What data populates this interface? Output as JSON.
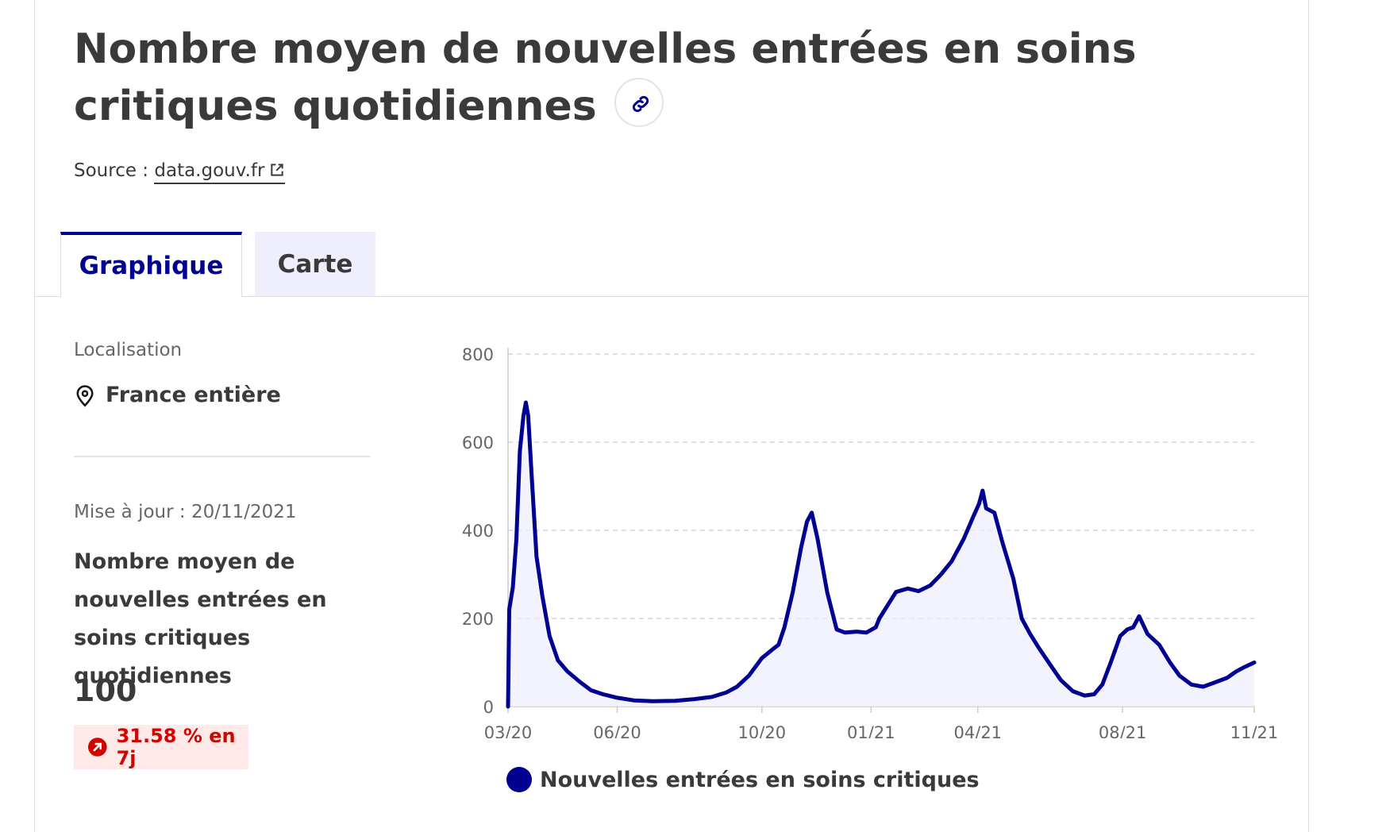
{
  "header": {
    "title": "Nombre moyen de nouvelles entrées en soins critiques quotidiennes",
    "source_prefix": "Source :",
    "source_link": "data.gouv.fr"
  },
  "tabs": [
    {
      "label": "Graphique",
      "active": true
    },
    {
      "label": "Carte",
      "active": false
    }
  ],
  "sidebar": {
    "location_label": "Localisation",
    "location_value": "France entière",
    "update_text": "Mise à jour : 20/11/2021",
    "metric_name": "Nombre moyen de nouvelles entrées en soins critiques quotidiennes",
    "metric_value": "100",
    "trend_text": "31.58 % en 7j"
  },
  "colors": {
    "accent": "#000091",
    "trend": "#ce0500",
    "trend_bg": "#ffe9e9"
  },
  "chart_data": {
    "type": "area",
    "xlabel": "",
    "ylabel": "",
    "ylim": [
      0,
      800
    ],
    "yticks": [
      0,
      200,
      400,
      600,
      800
    ],
    "xticks": [
      "03/20",
      "06/20",
      "10/20",
      "01/21",
      "04/21",
      "08/21",
      "11/21"
    ],
    "grid": true,
    "legend_position": "bottom",
    "series": [
      {
        "name": "Nouvelles entrées en soins critiques",
        "color": "#000091",
        "points": [
          [
            "2020-03-01",
            0
          ],
          [
            "2020-03-02",
            220
          ],
          [
            "2020-03-05",
            270
          ],
          [
            "2020-03-08",
            380
          ],
          [
            "2020-03-11",
            580
          ],
          [
            "2020-03-14",
            660
          ],
          [
            "2020-03-16",
            690
          ],
          [
            "2020-03-18",
            660
          ],
          [
            "2020-03-21",
            520
          ],
          [
            "2020-03-25",
            340
          ],
          [
            "2020-03-30",
            250
          ],
          [
            "2020-04-05",
            160
          ],
          [
            "2020-04-12",
            105
          ],
          [
            "2020-04-20",
            80
          ],
          [
            "2020-05-01",
            55
          ],
          [
            "2020-05-10",
            37
          ],
          [
            "2020-05-20",
            28
          ],
          [
            "2020-06-01",
            20
          ],
          [
            "2020-06-15",
            14
          ],
          [
            "2020-07-01",
            12
          ],
          [
            "2020-07-20",
            13
          ],
          [
            "2020-08-05",
            17
          ],
          [
            "2020-08-20",
            22
          ],
          [
            "2020-09-01",
            32
          ],
          [
            "2020-09-10",
            45
          ],
          [
            "2020-09-20",
            70
          ],
          [
            "2020-10-01",
            110
          ],
          [
            "2020-10-10",
            130
          ],
          [
            "2020-10-15",
            140
          ],
          [
            "2020-10-20",
            180
          ],
          [
            "2020-10-27",
            260
          ],
          [
            "2020-11-03",
            360
          ],
          [
            "2020-11-08",
            420
          ],
          [
            "2020-11-12",
            440
          ],
          [
            "2020-11-17",
            380
          ],
          [
            "2020-11-25",
            260
          ],
          [
            "2020-12-03",
            175
          ],
          [
            "2020-12-10",
            168
          ],
          [
            "2020-12-20",
            170
          ],
          [
            "2020-12-28",
            168
          ],
          [
            "2021-01-05",
            180
          ],
          [
            "2021-01-08",
            200
          ],
          [
            "2021-01-15",
            230
          ],
          [
            "2021-01-22",
            260
          ],
          [
            "2021-02-01",
            268
          ],
          [
            "2021-02-10",
            262
          ],
          [
            "2021-02-20",
            275
          ],
          [
            "2021-03-01",
            300
          ],
          [
            "2021-03-10",
            330
          ],
          [
            "2021-03-20",
            380
          ],
          [
            "2021-03-28",
            430
          ],
          [
            "2021-04-02",
            460
          ],
          [
            "2021-04-05",
            490
          ],
          [
            "2021-04-08",
            450
          ],
          [
            "2021-04-15",
            440
          ],
          [
            "2021-04-22",
            370
          ],
          [
            "2021-05-01",
            290
          ],
          [
            "2021-05-08",
            200
          ],
          [
            "2021-05-15",
            165
          ],
          [
            "2021-05-22",
            135
          ],
          [
            "2021-06-01",
            95
          ],
          [
            "2021-06-10",
            60
          ],
          [
            "2021-06-20",
            35
          ],
          [
            "2021-06-30",
            25
          ],
          [
            "2021-07-08",
            28
          ],
          [
            "2021-07-15",
            50
          ],
          [
            "2021-07-22",
            100
          ],
          [
            "2021-07-30",
            160
          ],
          [
            "2021-08-05",
            175
          ],
          [
            "2021-08-10",
            180
          ],
          [
            "2021-08-15",
            205
          ],
          [
            "2021-08-22",
            165
          ],
          [
            "2021-09-01",
            140
          ],
          [
            "2021-09-10",
            100
          ],
          [
            "2021-09-18",
            70
          ],
          [
            "2021-09-28",
            50
          ],
          [
            "2021-10-08",
            45
          ],
          [
            "2021-10-18",
            55
          ],
          [
            "2021-10-28",
            65
          ],
          [
            "2021-11-05",
            80
          ],
          [
            "2021-11-12",
            90
          ],
          [
            "2021-11-20",
            100
          ]
        ]
      }
    ]
  }
}
